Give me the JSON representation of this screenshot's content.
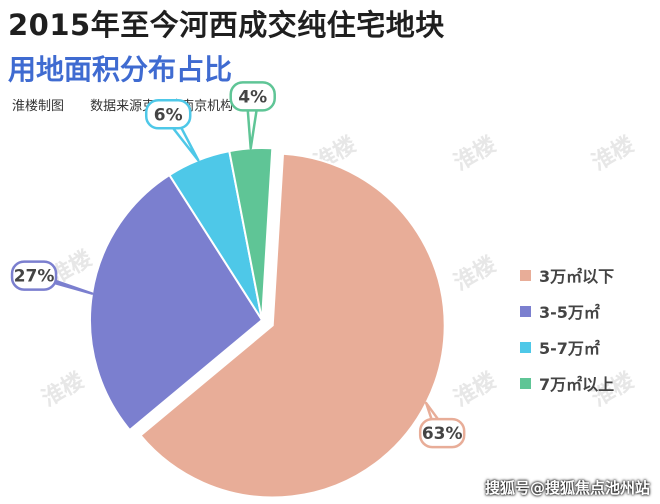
{
  "header": {
    "title": "2015年至今河西成交纯住宅地块",
    "subtitle": "用地面积分布占比",
    "credit_maker": "淮楼制图",
    "credit_source": "数据来源克而瑞南京机构"
  },
  "watermark_text": "淮楼",
  "footer_text": "搜狐号@搜狐焦点池州站",
  "chart_data": {
    "type": "pie",
    "title": "用地面积分布占比",
    "categories": [
      "3万㎡以下",
      "3-5万㎡",
      "5-7万㎡",
      "7万㎡以上"
    ],
    "values": [
      63,
      27,
      6,
      4
    ],
    "labels": [
      "63%",
      "27%",
      "6%",
      "4%"
    ],
    "colors": [
      "#e8ad98",
      "#7b7fcf",
      "#4ec8e8",
      "#5fc596"
    ],
    "exploded": "3万㎡以下",
    "legend_position": "right"
  }
}
